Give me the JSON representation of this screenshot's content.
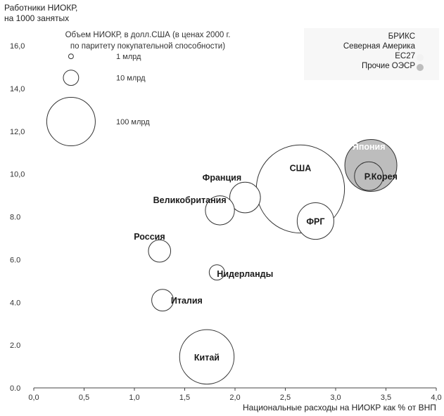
{
  "chart_data": {
    "type": "scatter",
    "ylabel": "Работники НИОКР,\nна 1000 занятых",
    "xlabel": "Национальные расходы на  НИОКР как % от ВНП",
    "xlim": [
      0.0,
      4.0
    ],
    "ylim": [
      0.0,
      16.0
    ],
    "x_ticks": [
      "0,0",
      "0,5",
      "1,0",
      "1,5",
      "2,0",
      "2,5",
      "3,0",
      "3,5",
      "4,0"
    ],
    "y_ticks": [
      "0.0",
      "2.0",
      "4.0",
      "6.0",
      "8.0",
      "10,0",
      "12,0",
      "14,0",
      "16,0"
    ],
    "grid": false,
    "legend": {
      "placement": "top-right",
      "entries": [
        {
          "label": "БРИКС",
          "color": ""
        },
        {
          "label": "Северная Америка",
          "color": ""
        },
        {
          "label": "ЕС27",
          "color": "#f2f2f2"
        },
        {
          "label": "Прочие ОЭСР",
          "color": "#bdbdbd"
        }
      ]
    },
    "size_legend": {
      "title": "Объем НИОКР, в долл.США (в ценах 2000 г.\nпо паритету покупательной способности)",
      "items": [
        {
          "label": "1 млрд",
          "x": 0.37,
          "y": 15.5,
          "size": 1
        },
        {
          "label": "10 млрд",
          "x": 0.37,
          "y": 14.5,
          "size": 10
        },
        {
          "label": "100 млрд",
          "x": 0.37,
          "y": 12.45,
          "size": 100
        }
      ]
    },
    "points": [
      {
        "label": "США",
        "x": 2.65,
        "y": 9.3,
        "size": 330,
        "group": "Северная Америка",
        "color": "#ffffff",
        "label_x": 2.65,
        "label_y": 10.3
      },
      {
        "label": "Япония",
        "x": 3.35,
        "y": 10.4,
        "size": 115,
        "group": "Прочие ОЭСР",
        "color": "#bdbdbd",
        "label_x": 3.33,
        "label_y": 11.3
      },
      {
        "label": "Р.Корея",
        "x": 3.33,
        "y": 9.9,
        "size": 35,
        "group": "Прочие ОЭСР",
        "color": "#bdbdbd",
        "label_x": 3.45,
        "label_y": 9.9
      },
      {
        "label": "ФРГ",
        "x": 2.8,
        "y": 7.8,
        "size": 57,
        "group": "ЕС27",
        "color": "#ffffff",
        "label_x": 2.8,
        "label_y": 7.8
      },
      {
        "label": "Франция",
        "x": 2.1,
        "y": 8.9,
        "size": 40,
        "group": "ЕС27",
        "color": "#ffffff",
        "label_x": 1.87,
        "label_y": 9.85
      },
      {
        "label": "Великобритания",
        "x": 1.85,
        "y": 8.3,
        "size": 36,
        "group": "ЕС27",
        "color": "#ffffff",
        "label_x": 1.55,
        "label_y": 8.8
      },
      {
        "label": "Россия",
        "x": 1.25,
        "y": 6.4,
        "size": 21,
        "group": "БРИКС",
        "color": "#ffffff",
        "label_x": 1.15,
        "label_y": 7.1
      },
      {
        "label": "Нидерланды",
        "x": 1.82,
        "y": 5.4,
        "size": 10,
        "group": "Прочие ОЭСР",
        "color": "#ffffff",
        "label_x": 2.1,
        "label_y": 5.35
      },
      {
        "label": "Италия",
        "x": 1.28,
        "y": 4.1,
        "size": 20,
        "group": "ЕС27",
        "color": "#ffffff",
        "label_x": 1.52,
        "label_y": 4.1
      },
      {
        "label": "Китай",
        "x": 1.72,
        "y": 1.45,
        "size": 126,
        "group": "БРИКС",
        "color": "#ffffff",
        "label_x": 1.72,
        "label_y": 1.45
      }
    ]
  }
}
